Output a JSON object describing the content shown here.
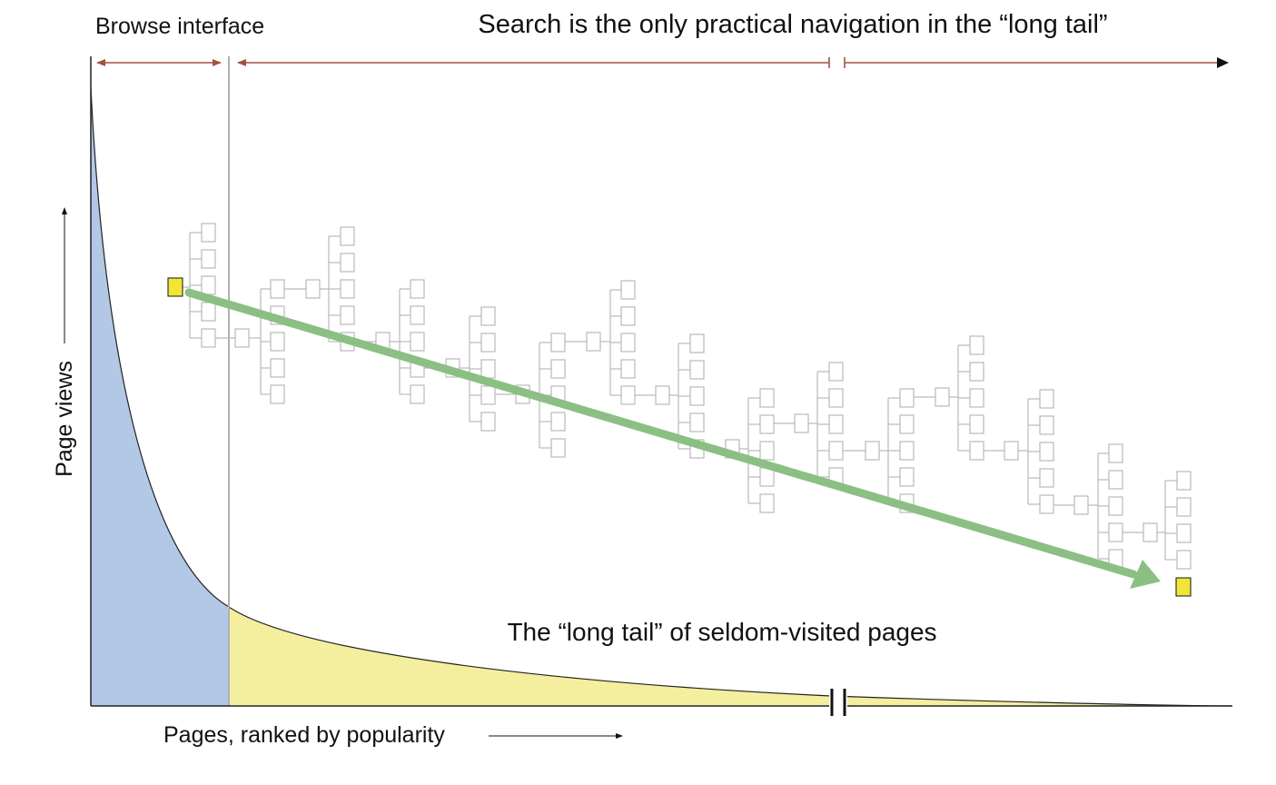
{
  "labels": {
    "browse_interface": "Browse interface",
    "search_note": "Search is the only practical navigation in the “long tail”",
    "long_tail": "The “long tail” of seldom-visited pages",
    "y_axis": "Page views",
    "x_axis": "Pages, ranked by popularity"
  },
  "colors": {
    "head_fill": "#b3c7e6",
    "tail_fill": "#f4ee9f",
    "path_arrow": "#8bbf84",
    "target_page": "#f1e636",
    "node_stroke": "#b9b9b9",
    "range_arrow": "#a0523f",
    "axis": "#222222"
  },
  "icons": {
    "start_page": "yellow-square-icon",
    "target_page": "yellow-square-icon",
    "axis_break": "double-bar-break-icon"
  }
}
